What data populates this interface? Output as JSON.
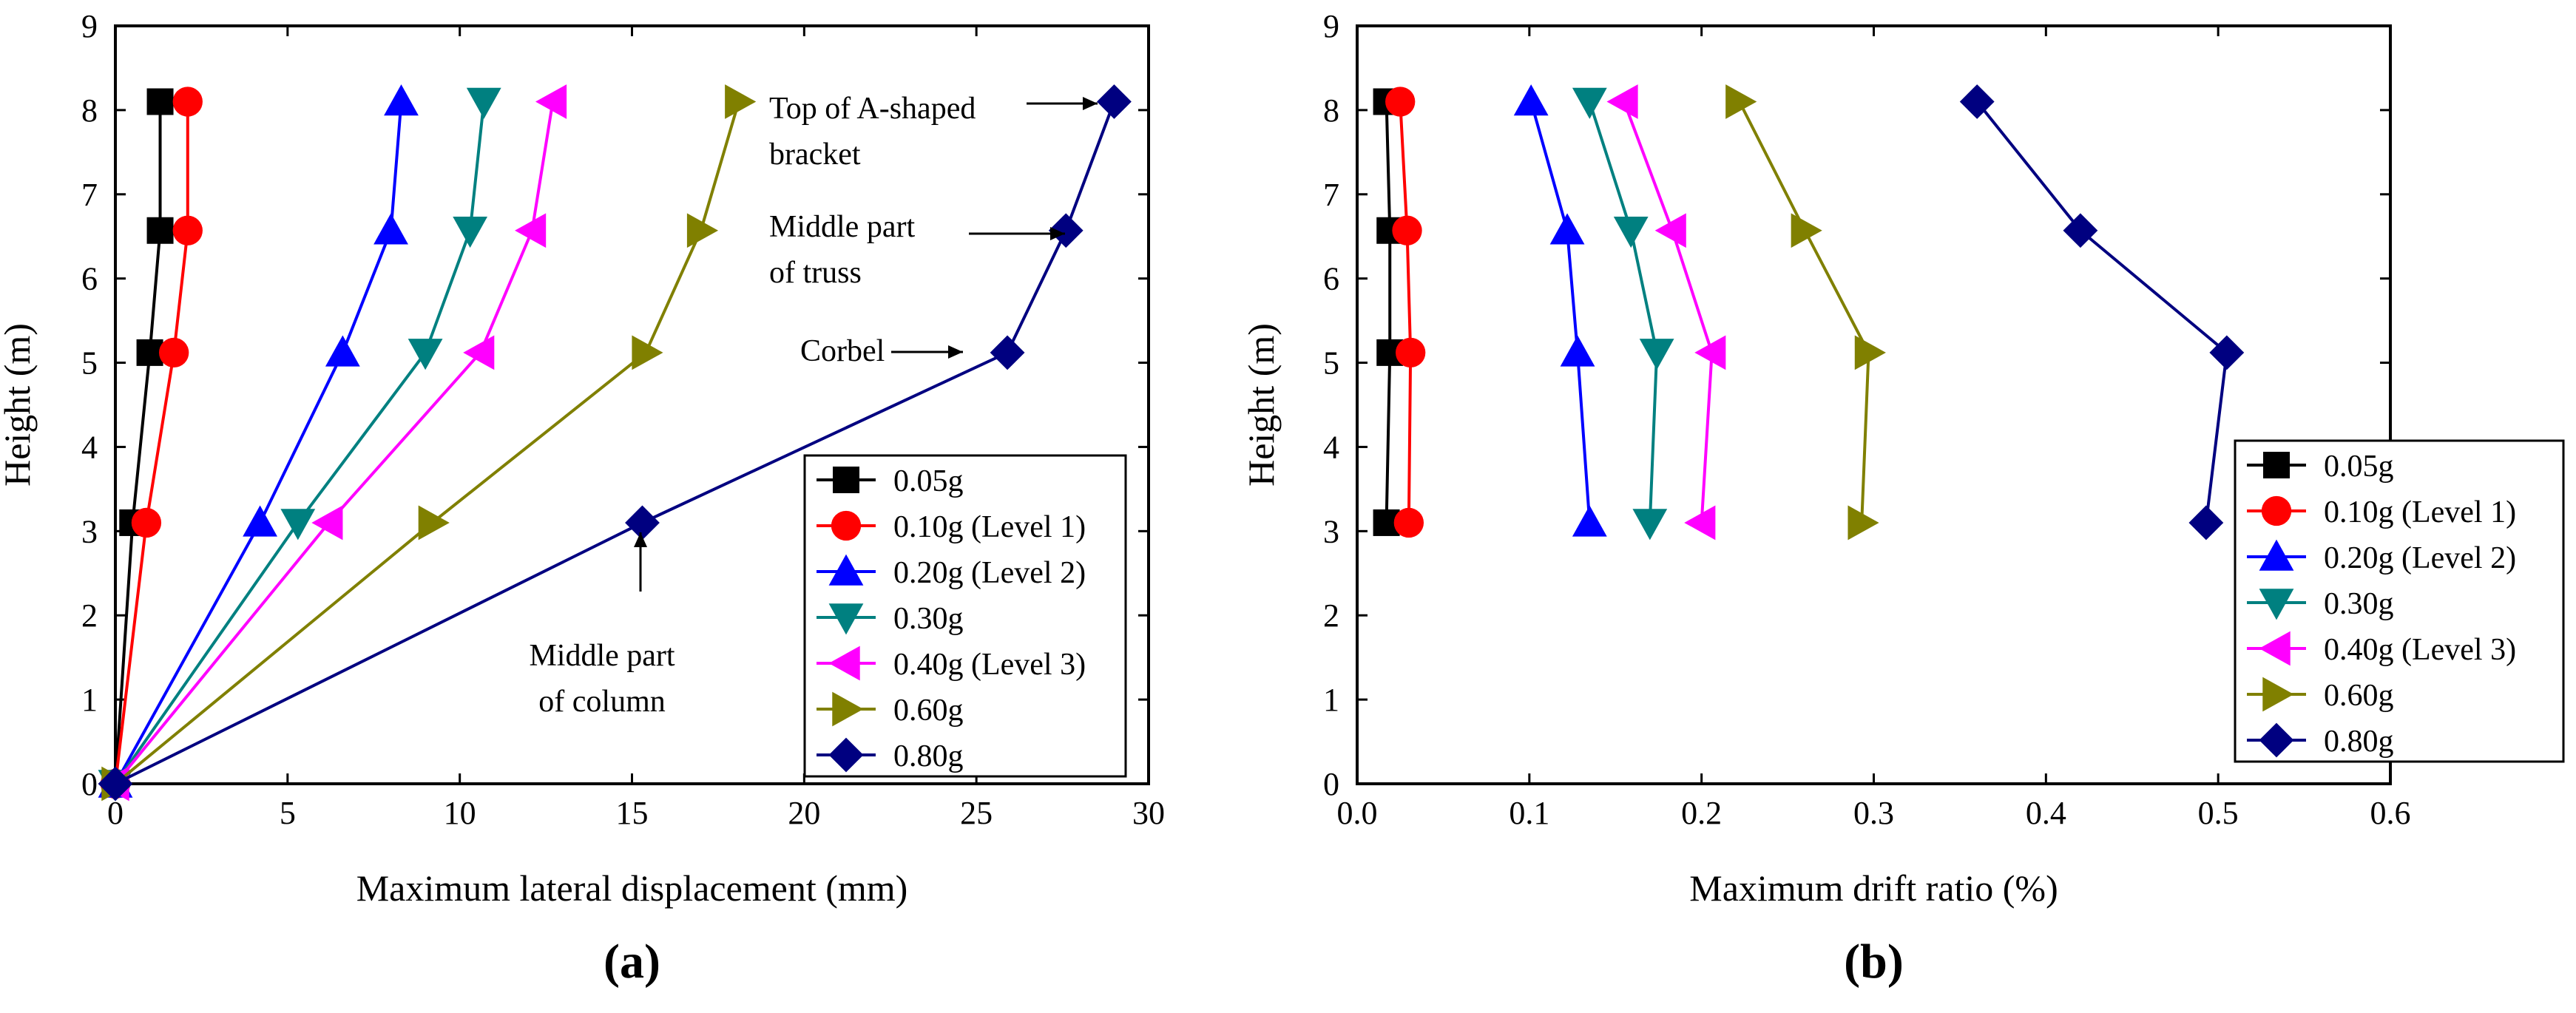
{
  "series_style": [
    {
      "name": "0.05g",
      "color": "#000000",
      "marker": "square"
    },
    {
      "name": "0.10g (Level 1)",
      "color": "#ff0000",
      "marker": "circle"
    },
    {
      "name": "0.20g (Level 2)",
      "color": "#0000ff",
      "marker": "tri-up"
    },
    {
      "name": "0.30g",
      "color": "#008080",
      "marker": "tri-down"
    },
    {
      "name": "0.40g (Level 3)",
      "color": "#ff00ff",
      "marker": "tri-left"
    },
    {
      "name": "0.60g",
      "color": "#808000",
      "marker": "tri-right"
    },
    {
      "name": "0.80g",
      "color": "#000080",
      "marker": "diamond"
    }
  ],
  "chart_data": [
    {
      "type": "line",
      "panel_label": "(a)",
      "xlabel": "Maximum lateral displacement (mm)",
      "ylabel": "Height (m)",
      "xlim": [
        0,
        30
      ],
      "ylim": [
        0,
        9
      ],
      "xticks": [
        0,
        5,
        10,
        15,
        20,
        25,
        30
      ],
      "yticks": [
        0,
        1,
        2,
        3,
        4,
        5,
        6,
        7,
        8,
        9
      ],
      "y_heights": [
        0,
        3.1,
        5.12,
        6.57,
        8.1
      ],
      "series": [
        {
          "name": "0.05g",
          "x": [
            0,
            0.5,
            1.0,
            1.3,
            1.3
          ]
        },
        {
          "name": "0.10g (Level 1)",
          "x": [
            0,
            0.9,
            1.7,
            2.1,
            2.1
          ]
        },
        {
          "name": "0.20g (Level 2)",
          "x": [
            0,
            4.2,
            6.6,
            8.0,
            8.3
          ]
        },
        {
          "name": "0.30g",
          "x": [
            0,
            5.3,
            9.0,
            10.3,
            10.7
          ]
        },
        {
          "name": "0.40g (Level 3)",
          "x": [
            0,
            6.2,
            10.6,
            12.1,
            12.7
          ]
        },
        {
          "name": "0.60g",
          "x": [
            0,
            9.2,
            15.4,
            17.0,
            18.1
          ]
        },
        {
          "name": "0.80g",
          "x": [
            0,
            15.3,
            25.9,
            27.6,
            29.0
          ]
        }
      ],
      "annotations": [
        {
          "lines": [
            "Top of A-shaped",
            "bracket"
          ],
          "x": 29.0,
          "y": 8.1
        },
        {
          "lines": [
            "Middle part",
            "of truss"
          ],
          "x": 27.6,
          "y": 6.57
        },
        {
          "lines": [
            "Corbel"
          ],
          "x": 25.9,
          "y": 5.12
        },
        {
          "lines": [
            "Middle part",
            "of column"
          ],
          "x": 15.3,
          "y": 3.1
        }
      ],
      "legend_position": "bottom-right"
    },
    {
      "type": "line",
      "panel_label": "(b)",
      "xlabel": "Maximum drift ratio (%)",
      "ylabel": "Height (m)",
      "xlim": [
        0,
        0.6
      ],
      "ylim": [
        0,
        9
      ],
      "xticks": [
        "0.0",
        "0.1",
        "0.2",
        "0.3",
        "0.4",
        "0.5",
        "0.6"
      ],
      "yticks": [
        0,
        1,
        2,
        3,
        4,
        5,
        6,
        7,
        8,
        9
      ],
      "y_heights": [
        3.1,
        5.12,
        6.57,
        8.1
      ],
      "series": [
        {
          "name": "0.05g",
          "x": [
            0.017,
            0.019,
            0.019,
            0.017
          ]
        },
        {
          "name": "0.10g (Level 1)",
          "x": [
            0.03,
            0.031,
            0.029,
            0.025
          ]
        },
        {
          "name": "0.20g (Level 2)",
          "x": [
            0.135,
            0.128,
            0.122,
            0.101
          ]
        },
        {
          "name": "0.30g",
          "x": [
            0.17,
            0.174,
            0.159,
            0.135
          ]
        },
        {
          "name": "0.40g (Level 3)",
          "x": [
            0.2,
            0.206,
            0.183,
            0.155
          ]
        },
        {
          "name": "0.60g",
          "x": [
            0.293,
            0.297,
            0.26,
            0.222
          ]
        },
        {
          "name": "0.80g",
          "x": [
            0.493,
            0.505,
            0.42,
            0.36
          ]
        }
      ],
      "legend_position": "right"
    }
  ]
}
